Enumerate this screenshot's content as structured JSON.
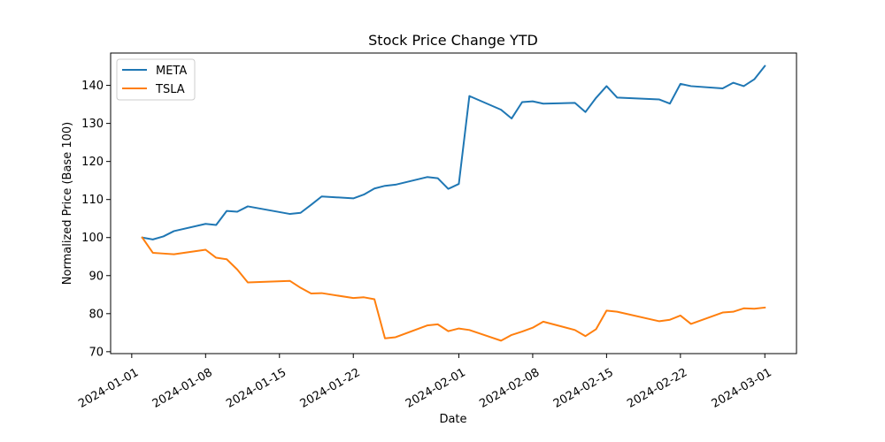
{
  "chart_data": {
    "type": "line",
    "title": "Stock Price Change YTD",
    "xlabel": "Date",
    "ylabel": "Normalized Price (Base 100)",
    "xlim": [
      "2023-12-30",
      "2024-03-04"
    ],
    "ylim": [
      69.5,
      148.5
    ],
    "x_ticks": [
      "2024-01-01",
      "2024-01-08",
      "2024-01-15",
      "2024-01-22",
      "2024-02-01",
      "2024-02-08",
      "2024-02-15",
      "2024-02-22",
      "2024-03-01"
    ],
    "y_ticks": [
      70,
      80,
      90,
      100,
      110,
      120,
      130,
      140
    ],
    "grid": false,
    "legend_position": "top-left",
    "series": [
      {
        "name": "META",
        "color": "#1f77b4",
        "points": [
          [
            "2024-01-02",
            100.0
          ],
          [
            "2024-01-03",
            99.5
          ],
          [
            "2024-01-04",
            100.3
          ],
          [
            "2024-01-05",
            101.7
          ],
          [
            "2024-01-08",
            103.6
          ],
          [
            "2024-01-09",
            103.3
          ],
          [
            "2024-01-10",
            107.0
          ],
          [
            "2024-01-11",
            106.8
          ],
          [
            "2024-01-12",
            108.2
          ],
          [
            "2024-01-16",
            106.2
          ],
          [
            "2024-01-17",
            106.5
          ],
          [
            "2024-01-18",
            108.6
          ],
          [
            "2024-01-19",
            110.8
          ],
          [
            "2024-01-22",
            110.3
          ],
          [
            "2024-01-23",
            111.3
          ],
          [
            "2024-01-24",
            112.9
          ],
          [
            "2024-01-25",
            113.6
          ],
          [
            "2024-01-26",
            113.9
          ],
          [
            "2024-01-29",
            115.9
          ],
          [
            "2024-01-30",
            115.6
          ],
          [
            "2024-01-31",
            112.8
          ],
          [
            "2024-02-01",
            114.1
          ],
          [
            "2024-02-02",
            137.2
          ],
          [
            "2024-02-05",
            133.6
          ],
          [
            "2024-02-06",
            131.3
          ],
          [
            "2024-02-07",
            135.6
          ],
          [
            "2024-02-08",
            135.8
          ],
          [
            "2024-02-09",
            135.2
          ],
          [
            "2024-02-12",
            135.4
          ],
          [
            "2024-02-13",
            133.0
          ],
          [
            "2024-02-14",
            136.7
          ],
          [
            "2024-02-15",
            139.8
          ],
          [
            "2024-02-16",
            136.8
          ],
          [
            "2024-02-20",
            136.3
          ],
          [
            "2024-02-21",
            135.2
          ],
          [
            "2024-02-22",
            140.4
          ],
          [
            "2024-02-23",
            139.8
          ],
          [
            "2024-02-26",
            139.2
          ],
          [
            "2024-02-27",
            140.7
          ],
          [
            "2024-02-28",
            139.8
          ],
          [
            "2024-02-29",
            141.6
          ],
          [
            "2024-03-01",
            145.1
          ]
        ]
      },
      {
        "name": "TSLA",
        "color": "#ff7f0e",
        "points": [
          [
            "2024-01-02",
            100.0
          ],
          [
            "2024-01-03",
            96.0
          ],
          [
            "2024-01-04",
            95.8
          ],
          [
            "2024-01-05",
            95.6
          ],
          [
            "2024-01-08",
            96.8
          ],
          [
            "2024-01-09",
            94.7
          ],
          [
            "2024-01-10",
            94.3
          ],
          [
            "2024-01-11",
            91.6
          ],
          [
            "2024-01-12",
            88.2
          ],
          [
            "2024-01-16",
            88.6
          ],
          [
            "2024-01-17",
            86.8
          ],
          [
            "2024-01-18",
            85.3
          ],
          [
            "2024-01-19",
            85.4
          ],
          [
            "2024-01-22",
            84.1
          ],
          [
            "2024-01-23",
            84.3
          ],
          [
            "2024-01-24",
            83.8
          ],
          [
            "2024-01-25",
            73.5
          ],
          [
            "2024-01-26",
            73.8
          ],
          [
            "2024-01-29",
            76.9
          ],
          [
            "2024-01-30",
            77.2
          ],
          [
            "2024-01-31",
            75.4
          ],
          [
            "2024-02-01",
            76.1
          ],
          [
            "2024-02-02",
            75.7
          ],
          [
            "2024-02-05",
            72.9
          ],
          [
            "2024-02-06",
            74.4
          ],
          [
            "2024-02-07",
            75.3
          ],
          [
            "2024-02-08",
            76.3
          ],
          [
            "2024-02-09",
            77.9
          ],
          [
            "2024-02-12",
            75.7
          ],
          [
            "2024-02-13",
            74.1
          ],
          [
            "2024-02-14",
            75.9
          ],
          [
            "2024-02-15",
            80.8
          ],
          [
            "2024-02-16",
            80.5
          ],
          [
            "2024-02-20",
            78.0
          ],
          [
            "2024-02-21",
            78.4
          ],
          [
            "2024-02-22",
            79.5
          ],
          [
            "2024-02-23",
            77.3
          ],
          [
            "2024-02-26",
            80.3
          ],
          [
            "2024-02-27",
            80.5
          ],
          [
            "2024-02-28",
            81.4
          ],
          [
            "2024-02-29",
            81.3
          ],
          [
            "2024-03-01",
            81.6
          ]
        ]
      }
    ]
  }
}
